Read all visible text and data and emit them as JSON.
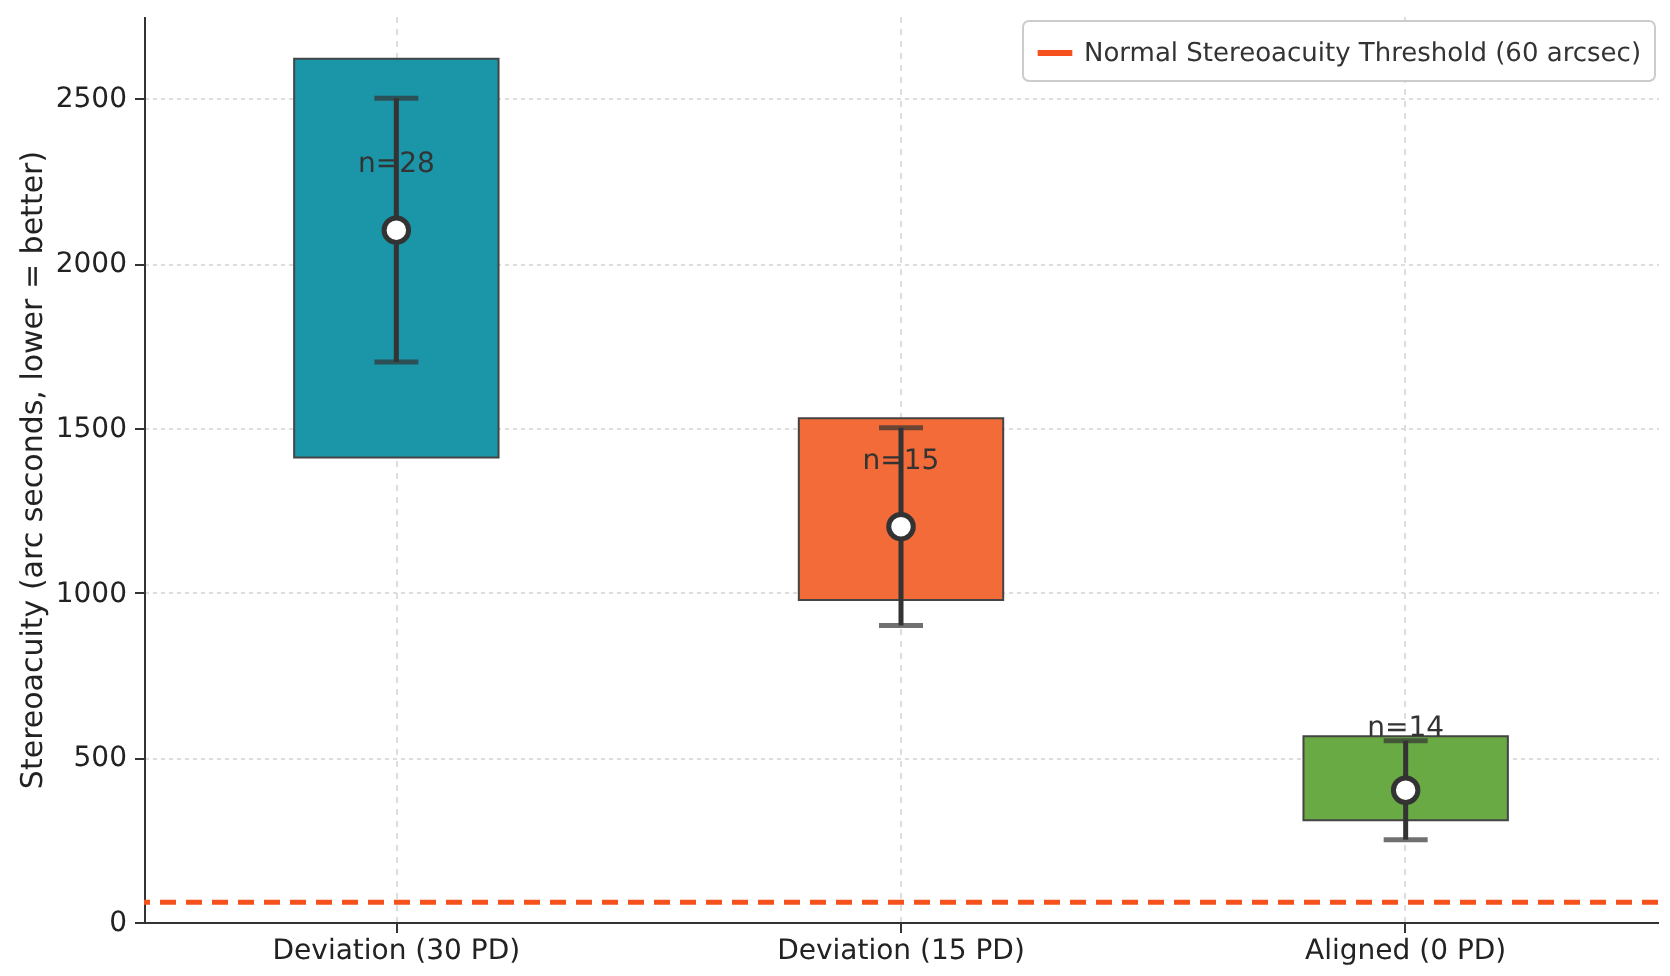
{
  "chart_data": {
    "type": "scatter",
    "ylabel": "Stereoacuity (arc seconds, lower = better)",
    "categories": [
      "Deviation (30 PD)",
      "Deviation (15 PD)",
      "Aligned (0 PD)"
    ],
    "ylim": [
      0,
      2750
    ],
    "yticks": [
      0,
      500,
      1000,
      1500,
      2000,
      2500
    ],
    "grid": true,
    "legend": "top right",
    "series": [
      {
        "type": "bar",
        "base": [
          1410,
          977,
          309
        ],
        "values": [
          1210,
          552,
          255
        ],
        "colors": [
          "#1a96a8",
          "#f26b38",
          "#6aaa45"
        ]
      },
      {
        "marker": "circle",
        "color": "#ffffff",
        "values": [
          2100,
          1200,
          400
        ],
        "errors": [
          [
            1700,
            2500
          ],
          [
            900,
            1500
          ],
          [
            250,
            550
          ]
        ]
      }
    ],
    "ref_lines": [
      {
        "axis": "y",
        "value": 60,
        "label": "Normal Stereoacuity Threshold (60 arcsec)",
        "color": "#f4511e",
        "line_style": "dashed"
      }
    ],
    "annotations": [
      {
        "text": "n=28",
        "x": "Deviation (30 PD)",
        "y": 2300
      },
      {
        "text": "n=15",
        "x": "Deviation (15 PD)",
        "y": 1400
      },
      {
        "text": "n=14",
        "x": "Aligned (0 PD)",
        "y": 590
      }
    ]
  }
}
